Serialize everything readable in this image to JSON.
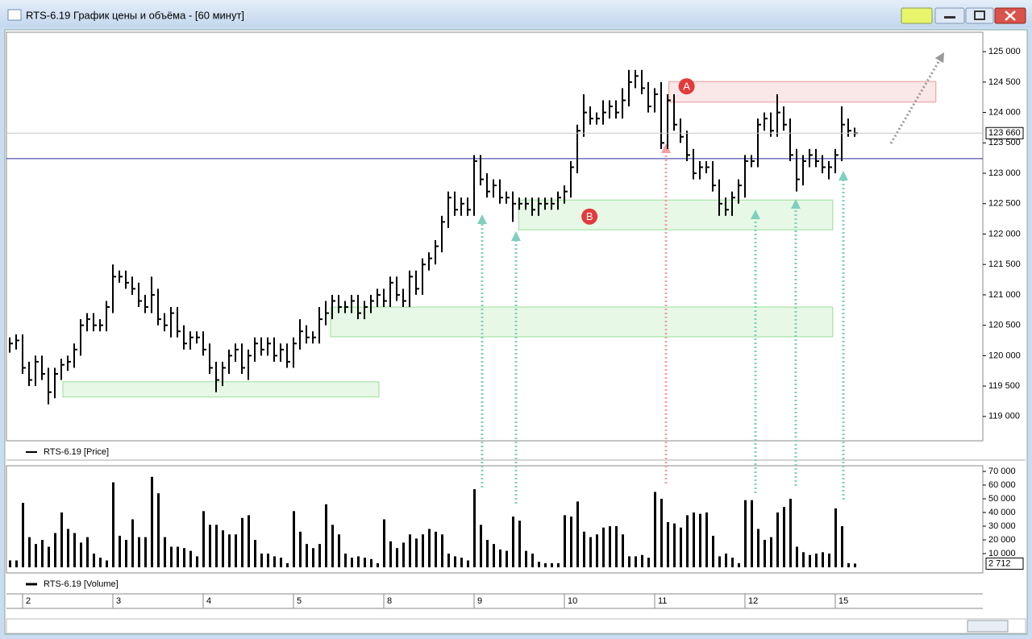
{
  "window_title": "RTS-6.19 График цены и объёма - [60 минут]",
  "chart_data": [
    {
      "type": "hlc",
      "series": [
        {
          "name": "RTS-6.19 [Price]",
          "color": "#000000",
          "high": [
            120300,
            120350,
            120350,
            119900,
            120000,
            120000,
            119800,
            119800,
            119950,
            120000,
            120200,
            120600,
            120700,
            120700,
            120600,
            120900,
            121500,
            121400,
            121400,
            121300,
            121200,
            121000,
            121300,
            121100,
            120700,
            120800,
            120800,
            120500,
            120400,
            120400,
            120400,
            120200,
            119900,
            119900,
            120100,
            120200,
            120200,
            120100,
            120300,
            120300,
            120300,
            120300,
            120200,
            120200,
            120300,
            120600,
            120500,
            120400,
            120800,
            120900,
            121000,
            121000,
            120900,
            121000,
            121000,
            120900,
            121000,
            121100,
            121100,
            121300,
            121300,
            121100,
            121400,
            121400,
            121600,
            121700,
            121900,
            122300,
            122700,
            122700,
            122600,
            122600,
            123300,
            123300,
            123000,
            122900,
            122900,
            122700,
            122700,
            122600,
            122600,
            122600,
            122600,
            122600,
            122600,
            122700,
            122800,
            123200,
            123800,
            124300,
            124100,
            124000,
            124200,
            124200,
            124200,
            124400,
            124700,
            124700,
            124700,
            124500,
            124400,
            124500,
            124300,
            124300,
            123900,
            123700,
            123400,
            123200,
            123200,
            123200,
            122900,
            122600,
            122700,
            122900,
            123300,
            123300,
            123900,
            124000,
            124000,
            124300,
            124100,
            123900,
            123400,
            123300,
            123400,
            123400,
            123300,
            123200,
            123400,
            124100,
            123900,
            123750
          ],
          "low": [
            120050,
            120100,
            119700,
            119500,
            119500,
            119600,
            119200,
            119300,
            119600,
            119750,
            119800,
            120000,
            120400,
            120400,
            120400,
            120400,
            120700,
            121200,
            121100,
            121000,
            120800,
            120700,
            120700,
            120500,
            120400,
            120300,
            120300,
            120100,
            120100,
            120200,
            120000,
            119700,
            119400,
            119500,
            119700,
            119900,
            119700,
            119600,
            119900,
            120000,
            120000,
            119900,
            119900,
            119800,
            119800,
            120100,
            120200,
            120200,
            120200,
            120500,
            120600,
            120700,
            120700,
            120700,
            120600,
            120600,
            120700,
            120800,
            120800,
            120800,
            120900,
            120800,
            120800,
            121000,
            121000,
            121400,
            121500,
            121700,
            122100,
            122300,
            122300,
            122300,
            122300,
            122800,
            122600,
            122600,
            122500,
            122500,
            122200,
            122400,
            122400,
            122300,
            122300,
            122400,
            122400,
            122400,
            122500,
            122600,
            123000,
            123600,
            123800,
            123800,
            123800,
            123900,
            123900,
            123900,
            124100,
            124400,
            124300,
            124000,
            124000,
            123400,
            123400,
            123700,
            123500,
            123200,
            122900,
            122900,
            123000,
            122700,
            122300,
            122300,
            122300,
            122500,
            122600,
            123100,
            123100,
            123700,
            123600,
            123600,
            123700,
            123200,
            122700,
            122800,
            123100,
            123100,
            123000,
            122900,
            123000,
            123200,
            123600,
            123600
          ],
          "close": [
            120200,
            120250,
            119800,
            119600,
            119900,
            119700,
            119400,
            119700,
            119850,
            119900,
            120100,
            120500,
            120600,
            120500,
            120500,
            120800,
            121300,
            121300,
            121200,
            121100,
            120900,
            120800,
            121000,
            120600,
            120500,
            120700,
            120400,
            120200,
            120300,
            120300,
            120100,
            119800,
            119600,
            119800,
            120000,
            120100,
            119800,
            120000,
            120200,
            120100,
            120200,
            120000,
            120100,
            119900,
            120200,
            120400,
            120300,
            120300,
            120600,
            120700,
            120900,
            120800,
            120800,
            120900,
            120700,
            120800,
            120900,
            121000,
            120900,
            121200,
            121000,
            120900,
            121300,
            121100,
            121500,
            121600,
            121800,
            122200,
            122600,
            122400,
            122500,
            122400,
            123200,
            122900,
            122700,
            122800,
            122600,
            122600,
            122500,
            122500,
            122500,
            122400,
            122500,
            122500,
            122500,
            122600,
            122700,
            123100,
            123700,
            124000,
            123900,
            123900,
            124000,
            124100,
            124000,
            124200,
            124500,
            124600,
            124400,
            124100,
            124300,
            123500,
            124200,
            123800,
            123600,
            123300,
            123000,
            123100,
            123100,
            122800,
            122500,
            122400,
            122600,
            122800,
            123200,
            123200,
            123800,
            123900,
            123700,
            124000,
            123800,
            123300,
            122900,
            123200,
            123300,
            123200,
            123100,
            123100,
            123300,
            123800,
            123700,
            123660
          ]
        }
      ],
      "ylim": [
        118600,
        125320
      ],
      "yticks": [
        {
          "value": 119000,
          "label": "119 000"
        },
        {
          "value": 119500,
          "label": "119 500"
        },
        {
          "value": 120000,
          "label": "120 000"
        },
        {
          "value": 120500,
          "label": "120 500"
        },
        {
          "value": 121000,
          "label": "121 000"
        },
        {
          "value": 121500,
          "label": "121 500"
        },
        {
          "value": 122000,
          "label": "122 000"
        },
        {
          "value": 122500,
          "label": "122 500"
        },
        {
          "value": 123000,
          "label": "123 000"
        },
        {
          "value": 123500,
          "label": "123 500"
        },
        {
          "value": 124000,
          "label": "124 000"
        },
        {
          "value": 124500,
          "label": "124 500"
        },
        {
          "value": 125000,
          "label": "125 000"
        }
      ],
      "last_value": {
        "value": 123660,
        "label": "123 660"
      },
      "levels": [
        {
          "value": 123240,
          "color": "#2a2a9a"
        }
      ],
      "zones": [
        {
          "label": "A",
          "from": 102.2,
          "to": 143.6,
          "low": 124170,
          "high": 124510,
          "color": "#e06060"
        },
        {
          "label": "B",
          "from": 78.9,
          "to": 127.6,
          "low": 122070,
          "high": 122560,
          "color": "#5ccf5c"
        },
        {
          "from": 49.75,
          "to": 127.6,
          "low": 120310,
          "high": 120800,
          "color": "#5ccf5c"
        },
        {
          "from": 8.25,
          "to": 57.25,
          "low": 119320,
          "high": 119570,
          "color": "#5ccf5c"
        }
      ]
    },
    {
      "type": "bar",
      "categories": [
        null,
        null,
        "2",
        null,
        null,
        null,
        null,
        null,
        null,
        null,
        null,
        null,
        null,
        null,
        null,
        null,
        "3",
        null,
        null,
        null,
        null,
        null,
        null,
        null,
        null,
        null,
        null,
        null,
        null,
        null,
        "4",
        null,
        null,
        null,
        null,
        null,
        null,
        null,
        null,
        null,
        null,
        null,
        null,
        null,
        "5",
        null,
        null,
        null,
        null,
        null,
        null,
        null,
        null,
        null,
        null,
        null,
        null,
        null,
        "8",
        null,
        null,
        null,
        null,
        null,
        null,
        null,
        null,
        null,
        null,
        null,
        null,
        null,
        "9",
        null,
        null,
        null,
        null,
        null,
        null,
        null,
        null,
        null,
        null,
        null,
        null,
        null,
        "10",
        null,
        null,
        null,
        null,
        null,
        null,
        null,
        null,
        null,
        null,
        null,
        null,
        null,
        "11",
        null,
        null,
        null,
        null,
        null,
        null,
        null,
        null,
        null,
        null,
        null,
        null,
        null,
        "12",
        null,
        null,
        null,
        null,
        null,
        null,
        null,
        null,
        null,
        null,
        null,
        null,
        null,
        "15",
        null,
        null,
        null
      ],
      "series": [
        {
          "name": "RTS-6.19 [Volume]",
          "color": "#000000",
          "values": [
            5000,
            5000,
            47000,
            22000,
            17000,
            20000,
            15000,
            25000,
            40000,
            28000,
            25000,
            18000,
            22000,
            10000,
            7000,
            5000,
            62000,
            23000,
            20000,
            35000,
            22000,
            22000,
            66000,
            54000,
            22000,
            15000,
            15000,
            14000,
            12000,
            8000,
            41000,
            31000,
            31000,
            27000,
            24000,
            24000,
            36000,
            38000,
            20000,
            10000,
            10000,
            8000,
            7000,
            3000,
            41000,
            26000,
            17000,
            14000,
            17000,
            46000,
            31000,
            24000,
            10000,
            7000,
            8000,
            7000,
            6000,
            3000,
            35000,
            19000,
            14000,
            18000,
            24000,
            21000,
            24000,
            28000,
            26000,
            24000,
            10000,
            8000,
            7000,
            5000,
            57000,
            31000,
            20000,
            17000,
            13000,
            12000,
            37000,
            34000,
            12000,
            10000,
            4000,
            3000,
            3000,
            3000,
            38000,
            37000,
            48000,
            26000,
            22000,
            24000,
            29000,
            30000,
            30000,
            24000,
            8000,
            8000,
            9000,
            7000,
            55000,
            50000,
            33000,
            32000,
            29000,
            38000,
            40000,
            39000,
            40000,
            23000,
            8000,
            10000,
            7000,
            3000,
            49000,
            49000,
            28000,
            20000,
            22000,
            40000,
            44000,
            50000,
            15000,
            11000,
            9000,
            10000,
            11000,
            10000,
            43000,
            30000,
            3000,
            2712
          ]
        }
      ],
      "ylim": [
        -4100,
        74100
      ],
      "yticks": [
        {
          "value": 10000,
          "label": "10 000"
        },
        {
          "value": 20000,
          "label": "20 000"
        },
        {
          "value": 30000,
          "label": "30 000"
        },
        {
          "value": 40000,
          "label": "40 000"
        },
        {
          "value": 50000,
          "label": "50 000"
        },
        {
          "value": 60000,
          "label": "60 000"
        },
        {
          "value": 70000,
          "label": "70 000"
        }
      ],
      "last_value": {
        "value": 2712,
        "label": "2 712"
      }
    }
  ]
}
